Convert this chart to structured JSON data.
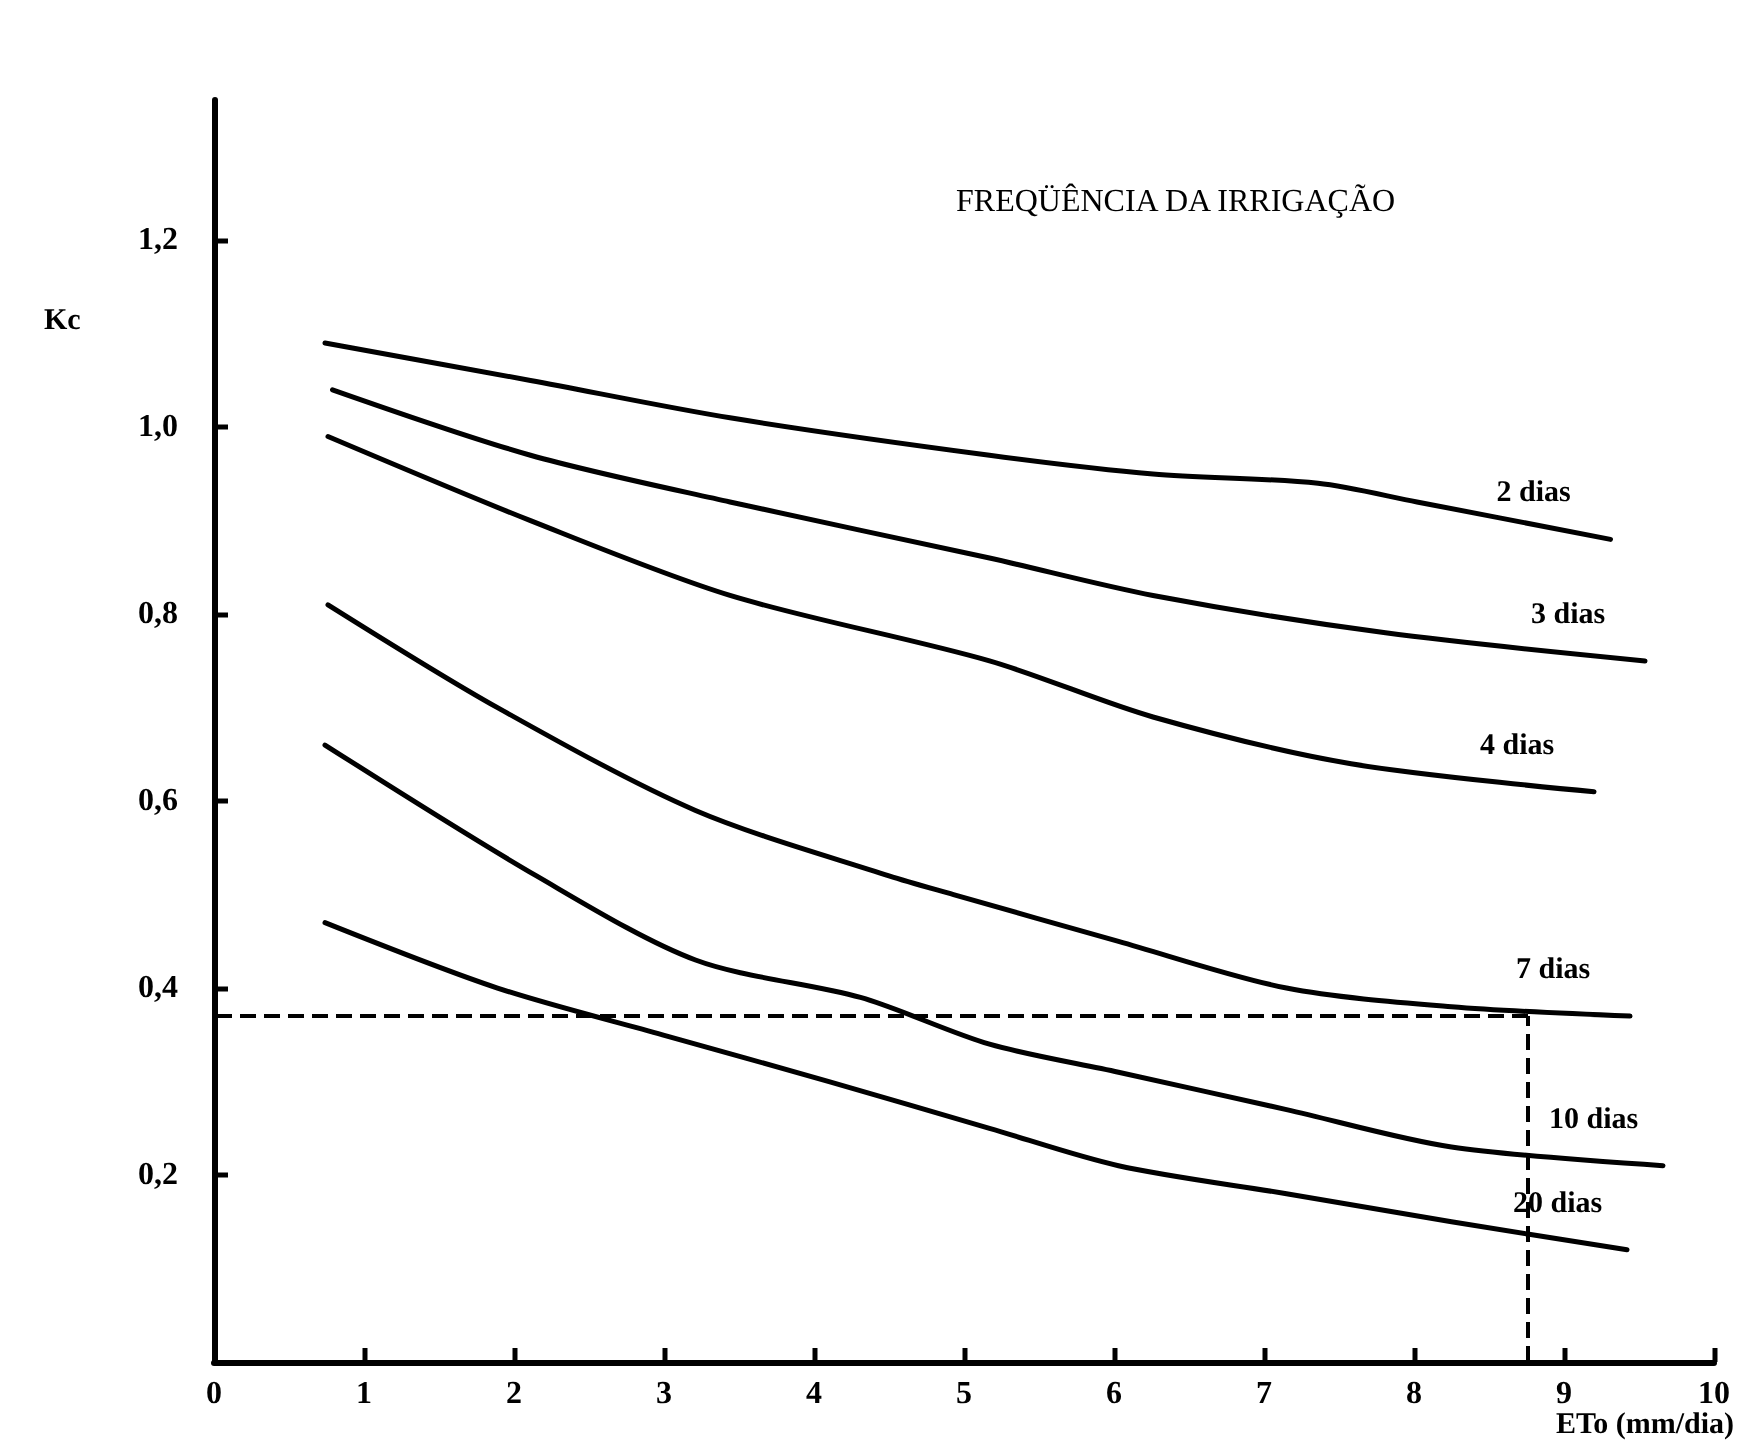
{
  "chart_data": {
    "type": "line",
    "title": "FREQÜÊNCIA DA IRRIGAÇÃO",
    "xlabel": "ETo (mm/dia)",
    "ylabel": "Kc",
    "xlim": [
      0,
      10
    ],
    "xticks": [
      0,
      1,
      2,
      3,
      4,
      5,
      6,
      7,
      8,
      9,
      10
    ],
    "ylim": [
      0,
      1.35
    ],
    "yticks": [
      {
        "value": 0.2,
        "label": "0,2"
      },
      {
        "value": 0.4,
        "label": "0,4"
      },
      {
        "value": 0.6,
        "label": "0,6"
      },
      {
        "value": 0.8,
        "label": "0,8"
      },
      {
        "value": 1.0,
        "label": "1,0"
      },
      {
        "value": 1.2,
        "label": "1,2"
      }
    ],
    "grid": false,
    "legend": false,
    "marker": "none",
    "line_style": "solid",
    "series": [
      {
        "name": "2 dias",
        "color": "#000000",
        "x": [
          0.74,
          2.11,
          3.44,
          5.17,
          6.26,
          7.36,
          8.02,
          9.31
        ],
        "values": [
          1.09,
          1.05,
          1.01,
          0.97,
          0.95,
          0.94,
          0.92,
          0.88
        ]
      },
      {
        "name": "3 dias",
        "color": "#000000",
        "x": [
          0.79,
          2.11,
          3.44,
          5.17,
          6.26,
          7.81,
          9.54
        ],
        "values": [
          1.04,
          0.97,
          0.92,
          0.86,
          0.82,
          0.78,
          0.75
        ]
      },
      {
        "name": "4 dias",
        "color": "#000000",
        "x": [
          0.76,
          2.11,
          3.44,
          5.17,
          6.26,
          7.58,
          9.2
        ],
        "values": [
          0.99,
          0.9,
          0.82,
          0.75,
          0.69,
          0.64,
          0.61
        ]
      },
      {
        "name": "7 dias",
        "color": "#000000",
        "x": [
          0.76,
          1.89,
          3.21,
          4.5,
          4.93,
          6.03,
          7.15,
          8.25,
          9.44
        ],
        "values": [
          0.81,
          0.7,
          0.59,
          0.52,
          0.5,
          0.45,
          0.4,
          0.38,
          0.37
        ]
      },
      {
        "name": "10 dias",
        "color": "#000000",
        "x": [
          0.74,
          2.15,
          3.21,
          4.31,
          5.17,
          6.03,
          7.15,
          8.25,
          9.66
        ],
        "values": [
          0.66,
          0.52,
          0.43,
          0.39,
          0.34,
          0.31,
          0.27,
          0.23,
          0.21
        ]
      },
      {
        "name": "20 dias",
        "color": "#000000",
        "x": [
          0.74,
          1.89,
          2.99,
          4.1,
          5.17,
          6.03,
          7.15,
          8.25,
          9.42
        ],
        "values": [
          0.47,
          0.4,
          0.35,
          0.3,
          0.25,
          0.21,
          0.18,
          0.15,
          0.12
        ]
      }
    ],
    "ref_lines": [
      {
        "axis": "y",
        "value": 0.37,
        "color": "#000000",
        "line_style": "dashed"
      },
      {
        "axis": "x",
        "value": 8.76,
        "color": "#000000",
        "line_style": "dashed"
      }
    ]
  }
}
